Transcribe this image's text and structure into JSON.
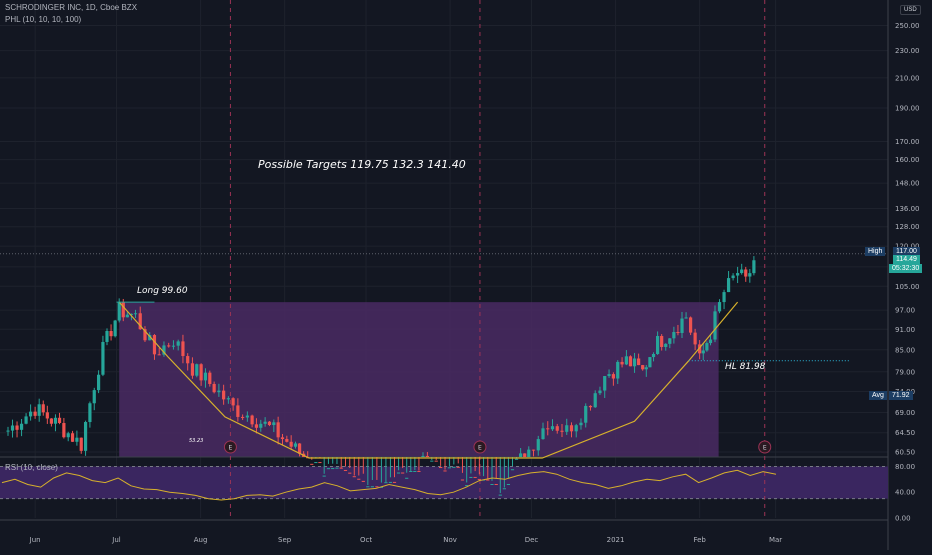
{
  "header": {
    "symbol": "SCHRODINGER INC, 1D, Cboe BZX",
    "indicator": "PHL (10, 10, 10, 100)",
    "currency": "USD",
    "rsi_label": "RSI (10, close)"
  },
  "colors": {
    "background": "#131722",
    "grid": "#1e222d",
    "up": "#26a69a",
    "down": "#ef5350",
    "cup_fill": "#4a2a63",
    "cup_curve": "#d7b12c",
    "rsi_band": "#3a2660",
    "rsi_line": "#d7b12c",
    "vline": "#9c3355",
    "dotted": "#29a8c8"
  },
  "price_axis": {
    "ticks": [
      "250.00",
      "230.00",
      "210.00",
      "190.00",
      "170.00",
      "160.00",
      "148.00",
      "136.00",
      "128.00",
      "120.00",
      "112.00",
      "105.00",
      "97.00",
      "91.00",
      "85.00",
      "79.00",
      "74.00",
      "69.00",
      "64.50",
      "60.50"
    ]
  },
  "rsi_axis": {
    "ticks": [
      "80.00",
      "40.00",
      "0.00"
    ]
  },
  "time_axis": {
    "labels": [
      "Jun",
      "Jul",
      "Aug",
      "Sep",
      "Oct",
      "Nov",
      "Dec",
      "2021",
      "Feb",
      "Mar"
    ]
  },
  "price_tags": {
    "high_label": "High",
    "high_value": "117.00",
    "last_value": "114.49",
    "countdown": "05:32:30",
    "avg_label": "Avg",
    "avg_value": "71.92"
  },
  "annotations": {
    "targets": "Possible Targets  119.75   132.3   141.40",
    "long": "Long  99.60",
    "hl": "HL 81.98",
    "low_mark": "53.23",
    "earnings": "E"
  },
  "chart_data": [
    {
      "type": "candlestick",
      "y_scale": "log",
      "x_ticks": [
        "Jun",
        "Jul",
        "Aug",
        "Sep",
        "Oct",
        "Nov",
        "Dec",
        "2021",
        "Feb",
        "Mar"
      ],
      "close_series": [
        {
          "date": "2020-05-22",
          "close": 65
        },
        {
          "date": "2020-06-01",
          "close": 70
        },
        {
          "date": "2020-06-10",
          "close": 66
        },
        {
          "date": "2020-06-18",
          "close": 62
        },
        {
          "date": "2020-06-26",
          "close": 85
        },
        {
          "date": "2020-07-02",
          "close": 97
        },
        {
          "date": "2020-07-08",
          "close": 95
        },
        {
          "date": "2020-07-15",
          "close": 84
        },
        {
          "date": "2020-07-22",
          "close": 88
        },
        {
          "date": "2020-07-29",
          "close": 80
        },
        {
          "date": "2020-08-06",
          "close": 75
        },
        {
          "date": "2020-08-13",
          "close": 70
        },
        {
          "date": "2020-08-20",
          "close": 68
        },
        {
          "date": "2020-08-28",
          "close": 65
        },
        {
          "date": "2020-09-05",
          "close": 61
        },
        {
          "date": "2020-09-14",
          "close": 57
        },
        {
          "date": "2020-09-25",
          "close": 55
        },
        {
          "date": "2020-10-10",
          "close": 54
        },
        {
          "date": "2020-10-22",
          "close": 58
        },
        {
          "date": "2020-11-04",
          "close": 56
        },
        {
          "date": "2020-11-18",
          "close": 53
        },
        {
          "date": "2020-11-30",
          "close": 61
        },
        {
          "date": "2020-12-07",
          "close": 67
        },
        {
          "date": "2020-12-14",
          "close": 65
        },
        {
          "date": "2020-12-21",
          "close": 70
        },
        {
          "date": "2020-12-28",
          "close": 78
        },
        {
          "date": "2021-01-05",
          "close": 82
        },
        {
          "date": "2021-01-11",
          "close": 79
        },
        {
          "date": "2021-01-15",
          "close": 86
        },
        {
          "date": "2021-01-21",
          "close": 90
        },
        {
          "date": "2021-01-27",
          "close": 95
        },
        {
          "date": "2021-02-01",
          "close": 82
        },
        {
          "date": "2021-02-05",
          "close": 90
        },
        {
          "date": "2021-02-10",
          "close": 103
        },
        {
          "date": "2021-02-15",
          "close": 110
        },
        {
          "date": "2021-02-18",
          "close": 106
        },
        {
          "date": "2021-02-21",
          "close": 114.49
        }
      ],
      "levels": {
        "long_entry": 99.6,
        "higher_low": 81.98,
        "targets": [
          119.75,
          132.3,
          141.4
        ],
        "high": 117.0,
        "avg": 71.92,
        "last": 114.49
      }
    },
    {
      "type": "line",
      "name": "RSI (10, close)",
      "ylim": [
        0,
        100
      ],
      "bands": [
        30,
        80
      ],
      "values": [
        55,
        60,
        52,
        48,
        62,
        70,
        66,
        58,
        55,
        62,
        50,
        45,
        44,
        40,
        38,
        35,
        30,
        28,
        30,
        35,
        36,
        34,
        40,
        45,
        48,
        55,
        50,
        42,
        44,
        46,
        52,
        48,
        44,
        38,
        36,
        40,
        48,
        58,
        62,
        60,
        66,
        70,
        72,
        68,
        60,
        55,
        52,
        46,
        50,
        56,
        60,
        58,
        64,
        68,
        55,
        62,
        70,
        74,
        66,
        72,
        68
      ]
    }
  ]
}
